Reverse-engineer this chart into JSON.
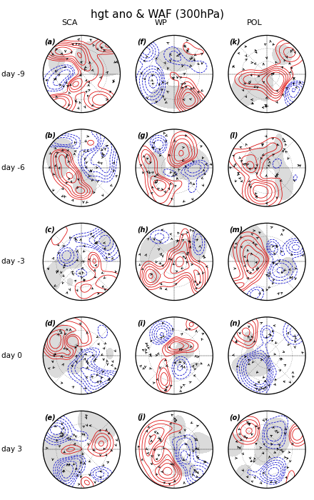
{
  "title": "hgt ano & WAF (300hPa)",
  "col_labels": [
    "SCA",
    "WP",
    "POL"
  ],
  "row_labels": [
    "day -9",
    "day -6",
    "day -3",
    "day 0",
    "day 3"
  ],
  "panel_letters": [
    [
      "(a)",
      "(f)",
      "(k)"
    ],
    [
      "(b)",
      "(g)",
      "(l)"
    ],
    [
      "(c)",
      "(h)",
      "(m)"
    ],
    [
      "(d)",
      "(i)",
      "(n)"
    ],
    [
      "(e)",
      "(j)",
      "(o)"
    ]
  ],
  "nrows": 5,
  "ncols": 3,
  "bg_color": "#ffffff",
  "red_contour": "#dd0000",
  "blue_contour": "#0000cc",
  "title_fontsize": 11,
  "label_fontsize": 7.5,
  "panel_letter_fontsize": 7,
  "col_label_fontsize": 8
}
